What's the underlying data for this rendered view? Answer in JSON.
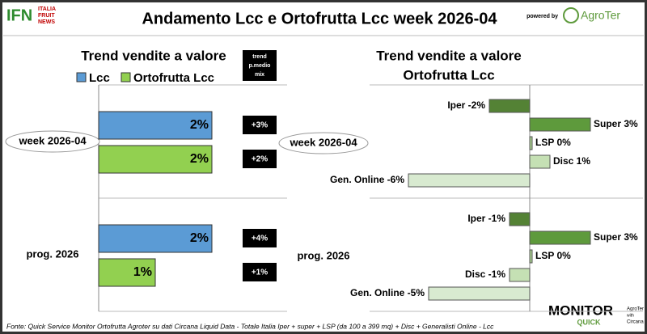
{
  "header": {
    "title": "Andamento Lcc e Ortofrutta Lcc week 2026-04",
    "logo": {
      "mark": "IFN",
      "lines": [
        "ITALIA",
        "FRUIT",
        "NEWS"
      ]
    },
    "powered_by": "powered by",
    "brand": "AgroTer"
  },
  "chart_data": [
    {
      "type": "bar",
      "orientation": "horizontal",
      "title": "Trend vendite a valore",
      "categories": [
        "week 2026-04",
        "prog. 2026"
      ],
      "series": [
        {
          "name": "Lcc",
          "color": "#5b9bd5",
          "values": [
            2,
            2
          ],
          "value_labels": [
            "2%",
            "2%"
          ]
        },
        {
          "name": "Ortofrutta Lcc",
          "color": "#92d050",
          "values": [
            2,
            1
          ],
          "value_labels": [
            "2%",
            "1%"
          ]
        }
      ],
      "trend": {
        "title": [
          "trend",
          "p.medio",
          "mix"
        ],
        "labels": [
          [
            "+3%",
            "+2%"
          ],
          [
            "+4%",
            "+1%"
          ]
        ]
      }
    },
    {
      "type": "bar",
      "orientation": "horizontal",
      "title": [
        "Trend vendite a valore",
        "Ortofrutta Lcc"
      ],
      "colors": [
        "#548235",
        "#5e9a3c",
        "#a9d18e",
        "#c5e0b4",
        "#d8ead0"
      ],
      "groups": [
        {
          "label": "week 2026-04",
          "values": [
            -2,
            3,
            0,
            1,
            -6
          ],
          "value_labels": [
            "Iper -2%",
            "Super 3%",
            "LSP 0%",
            "Disc 1%",
            "Gen. Online -6%"
          ]
        },
        {
          "label": "prog. 2026",
          "values": [
            -1,
            3,
            0,
            -1,
            -5
          ],
          "value_labels": [
            "Iper -1%",
            "Super 3%",
            "LSP 0%",
            "Disc -1%",
            "Gen. Online -5%"
          ]
        }
      ]
    }
  ],
  "footer": {
    "source": "Fonte: Quick Service Monitor Ortofrutta Agroter su dati Circana Liquid Data - Totale Italia Iper + super + LSP (da 100 a 399 mq) + Disc + Generalisti Online - Lcc",
    "logo": {
      "main": "MONITOR",
      "sub": "QUICK",
      "partner": [
        "AgroTer",
        "with",
        "Circana"
      ]
    }
  }
}
